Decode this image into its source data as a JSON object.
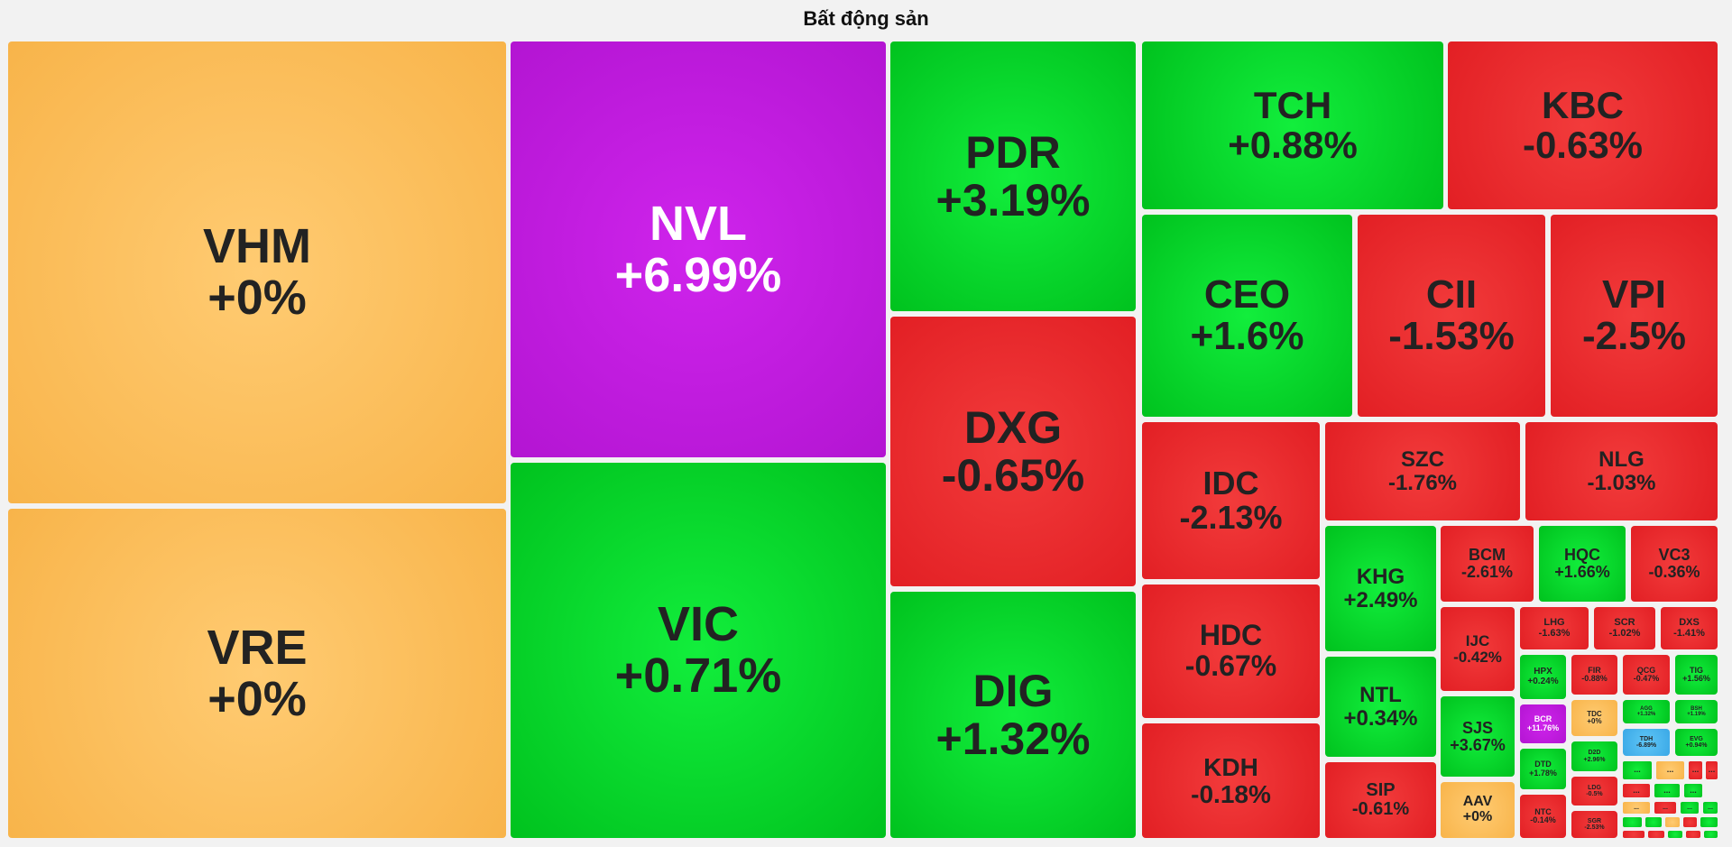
{
  "title": "Bất động sản",
  "colors": {
    "flat": "#f8b44a",
    "up": "#00c21e",
    "down": "#e21f24",
    "ceiling": "#b315d2",
    "floor": "#3aa8e6"
  },
  "chart_data": {
    "type": "treemap",
    "title": "Bất động sản",
    "tiles": [
      {
        "ticker": "VHM",
        "change": "+0%",
        "status": "flat"
      },
      {
        "ticker": "VRE",
        "change": "+0%",
        "status": "flat"
      },
      {
        "ticker": "NVL",
        "change": "+6.99%",
        "status": "ceiling"
      },
      {
        "ticker": "VIC",
        "change": "+0.71%",
        "status": "up"
      },
      {
        "ticker": "PDR",
        "change": "+3.19%",
        "status": "up"
      },
      {
        "ticker": "DXG",
        "change": "-0.65%",
        "status": "down"
      },
      {
        "ticker": "DIG",
        "change": "+1.32%",
        "status": "up"
      },
      {
        "ticker": "TCH",
        "change": "+0.88%",
        "status": "up"
      },
      {
        "ticker": "KBC",
        "change": "-0.63%",
        "status": "down"
      },
      {
        "ticker": "CEO",
        "change": "+1.6%",
        "status": "up"
      },
      {
        "ticker": "CII",
        "change": "-1.53%",
        "status": "down"
      },
      {
        "ticker": "VPI",
        "change": "-2.5%",
        "status": "down"
      },
      {
        "ticker": "IDC",
        "change": "-2.13%",
        "status": "down"
      },
      {
        "ticker": "SZC",
        "change": "-1.76%",
        "status": "down"
      },
      {
        "ticker": "NLG",
        "change": "-1.03%",
        "status": "down"
      },
      {
        "ticker": "HDC",
        "change": "-0.67%",
        "status": "down"
      },
      {
        "ticker": "KDH",
        "change": "-0.18%",
        "status": "down"
      },
      {
        "ticker": "KHG",
        "change": "+2.49%",
        "status": "up"
      },
      {
        "ticker": "NTL",
        "change": "+0.34%",
        "status": "up"
      },
      {
        "ticker": "SIP",
        "change": "-0.61%",
        "status": "down"
      },
      {
        "ticker": "BCM",
        "change": "-2.61%",
        "status": "down"
      },
      {
        "ticker": "HQC",
        "change": "+1.66%",
        "status": "up"
      },
      {
        "ticker": "VC3",
        "change": "-0.36%",
        "status": "down"
      },
      {
        "ticker": "IJC",
        "change": "-0.42%",
        "status": "down"
      },
      {
        "ticker": "LHG",
        "change": "-1.63%",
        "status": "down"
      },
      {
        "ticker": "SCR",
        "change": "-1.02%",
        "status": "down"
      },
      {
        "ticker": "DXS",
        "change": "-1.41%",
        "status": "down"
      },
      {
        "ticker": "SJS",
        "change": "+3.67%",
        "status": "up"
      },
      {
        "ticker": "HPX",
        "change": "+0.24%",
        "status": "up"
      },
      {
        "ticker": "FIR",
        "change": "-0.88%",
        "status": "down"
      },
      {
        "ticker": "QCG",
        "change": "-0.47%",
        "status": "down"
      },
      {
        "ticker": "TIG",
        "change": "+1.56%",
        "status": "up"
      },
      {
        "ticker": "AAV",
        "change": "+0%",
        "status": "flat"
      },
      {
        "ticker": "BCR",
        "change": "+11.76%",
        "status": "ceiling"
      },
      {
        "ticker": "TDC",
        "change": "+0%",
        "status": "flat"
      },
      {
        "ticker": "AGG",
        "change": "+1.32%",
        "status": "up"
      },
      {
        "ticker": "BSH",
        "change": "+1.19%",
        "status": "up"
      },
      {
        "ticker": "D2D",
        "change": "+2.96%",
        "status": "up"
      },
      {
        "ticker": "TDH",
        "change": "-6.89%",
        "status": "floor"
      },
      {
        "ticker": "EVG",
        "change": "+0.94%",
        "status": "up"
      },
      {
        "ticker": "DTD",
        "change": "+1.78%",
        "status": "up"
      },
      {
        "ticker": "LDG",
        "change": "-0.5%",
        "status": "down"
      },
      {
        "ticker": "NTC",
        "change": "-0.14%",
        "status": "down"
      },
      {
        "ticker": "SGR",
        "change": "-2.53%",
        "status": "down"
      }
    ],
    "more_label": "...",
    "overflow_tiles": [
      "up",
      "flat",
      "down",
      "down",
      "down",
      "up",
      "up",
      "flat",
      "down",
      "up",
      "up",
      "up",
      "up",
      "flat",
      "down",
      "up",
      "down",
      "down",
      "up",
      "down",
      "up"
    ]
  }
}
